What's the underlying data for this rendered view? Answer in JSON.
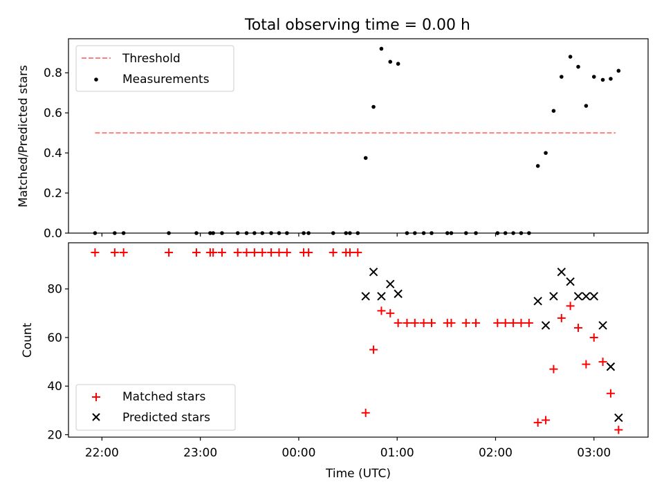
{
  "chart_data": [
    {
      "type": "scatter",
      "title": "Total observing time = 0.00 h",
      "xlabel": "",
      "ylabel": "Matched/Predicted stars",
      "ylim": [
        0,
        0.97
      ],
      "xlim_hours_utc": [
        21.66,
        27.55
      ],
      "yticks": [
        "0.0",
        "0.2",
        "0.4",
        "0.6",
        "0.8"
      ],
      "grid": false,
      "legend": {
        "placement": "upper-left",
        "entries": [
          "Threshold",
          "Measurements"
        ]
      },
      "threshold": {
        "name": "Threshold",
        "y": 0.5,
        "x_range": [
          21.93,
          27.22
        ],
        "color": "#ff7f7f"
      },
      "series": [
        {
          "name": "Measurements",
          "color": "#000000",
          "points": [
            [
              21.93,
              0
            ],
            [
              22.13,
              0
            ],
            [
              22.22,
              0
            ],
            [
              22.68,
              0
            ],
            [
              22.96,
              0
            ],
            [
              23.1,
              0
            ],
            [
              23.13,
              0
            ],
            [
              23.22,
              0
            ],
            [
              23.38,
              0
            ],
            [
              23.47,
              0
            ],
            [
              23.55,
              0
            ],
            [
              23.63,
              0
            ],
            [
              23.72,
              0
            ],
            [
              23.8,
              0
            ],
            [
              23.88,
              0
            ],
            [
              24.05,
              0
            ],
            [
              24.1,
              0
            ],
            [
              24.35,
              0
            ],
            [
              24.48,
              0
            ],
            [
              24.52,
              0
            ],
            [
              24.6,
              0
            ],
            [
              24.68,
              0.375
            ],
            [
              24.76,
              0.63
            ],
            [
              24.84,
              0.92
            ],
            [
              24.93,
              0.855
            ],
            [
              25.01,
              0.845
            ],
            [
              25.1,
              0
            ],
            [
              25.18,
              0
            ],
            [
              25.27,
              0
            ],
            [
              25.35,
              0
            ],
            [
              25.51,
              0
            ],
            [
              25.55,
              0
            ],
            [
              25.7,
              0
            ],
            [
              25.8,
              0
            ],
            [
              26.02,
              0
            ],
            [
              26.1,
              0
            ],
            [
              26.18,
              0
            ],
            [
              26.26,
              0
            ],
            [
              26.34,
              0
            ],
            [
              26.43,
              0.335
            ],
            [
              26.51,
              0.4
            ],
            [
              26.59,
              0.61
            ],
            [
              26.67,
              0.78
            ],
            [
              26.76,
              0.88
            ],
            [
              26.84,
              0.83
            ],
            [
              26.92,
              0.635
            ],
            [
              27.0,
              0.78
            ],
            [
              27.09,
              0.765
            ],
            [
              27.17,
              0.77
            ],
            [
              27.25,
              0.81
            ]
          ]
        }
      ]
    },
    {
      "type": "scatter",
      "title": "",
      "xlabel": "Time (UTC)",
      "ylabel": "Count",
      "ylim": [
        19,
        99
      ],
      "xlim_hours_utc": [
        21.66,
        27.55
      ],
      "yticks": [
        "20",
        "40",
        "60",
        "80"
      ],
      "xticks": [
        {
          "hour": 22,
          "label": "22:00"
        },
        {
          "hour": 23,
          "label": "23:00"
        },
        {
          "hour": 24,
          "label": "00:00"
        },
        {
          "hour": 25,
          "label": "01:00"
        },
        {
          "hour": 26,
          "label": "02:00"
        },
        {
          "hour": 27,
          "label": "03:00"
        }
      ],
      "grid": false,
      "legend": {
        "placement": "lower-left",
        "entries": [
          "Matched stars",
          "Predicted stars"
        ]
      },
      "series": [
        {
          "name": "Matched stars",
          "marker": "plus",
          "color": "#ff0000",
          "points": [
            [
              21.93,
              95
            ],
            [
              22.13,
              95
            ],
            [
              22.22,
              95
            ],
            [
              22.68,
              95
            ],
            [
              22.96,
              95
            ],
            [
              23.1,
              95
            ],
            [
              23.13,
              95
            ],
            [
              23.22,
              95
            ],
            [
              23.38,
              95
            ],
            [
              23.47,
              95
            ],
            [
              23.55,
              95
            ],
            [
              23.63,
              95
            ],
            [
              23.72,
              95
            ],
            [
              23.8,
              95
            ],
            [
              23.88,
              95
            ],
            [
              24.05,
              95
            ],
            [
              24.1,
              95
            ],
            [
              24.35,
              95
            ],
            [
              24.48,
              95
            ],
            [
              24.52,
              95
            ],
            [
              24.6,
              95
            ],
            [
              24.68,
              29
            ],
            [
              24.76,
              55
            ],
            [
              24.84,
              71
            ],
            [
              24.93,
              70
            ],
            [
              25.01,
              66
            ],
            [
              25.1,
              66
            ],
            [
              25.18,
              66
            ],
            [
              25.27,
              66
            ],
            [
              25.35,
              66
            ],
            [
              25.51,
              66
            ],
            [
              25.55,
              66
            ],
            [
              25.7,
              66
            ],
            [
              25.8,
              66
            ],
            [
              26.02,
              66
            ],
            [
              26.1,
              66
            ],
            [
              26.18,
              66
            ],
            [
              26.26,
              66
            ],
            [
              26.34,
              66
            ],
            [
              26.43,
              25
            ],
            [
              26.51,
              26
            ],
            [
              26.59,
              47
            ],
            [
              26.67,
              68
            ],
            [
              26.76,
              73
            ],
            [
              26.84,
              64
            ],
            [
              26.92,
              49
            ],
            [
              27.0,
              60
            ],
            [
              27.09,
              50
            ],
            [
              27.17,
              37
            ],
            [
              27.25,
              22
            ]
          ]
        },
        {
          "name": "Predicted stars",
          "marker": "x",
          "color": "#000000",
          "points": [
            [
              24.68,
              77
            ],
            [
              24.76,
              87
            ],
            [
              24.84,
              77
            ],
            [
              24.93,
              82
            ],
            [
              25.01,
              78
            ],
            [
              26.43,
              75
            ],
            [
              26.51,
              65
            ],
            [
              26.59,
              77
            ],
            [
              26.67,
              87
            ],
            [
              26.76,
              83
            ],
            [
              26.84,
              77
            ],
            [
              26.92,
              77
            ],
            [
              27.0,
              77
            ],
            [
              27.09,
              65
            ],
            [
              27.17,
              48
            ],
            [
              27.25,
              27
            ]
          ]
        }
      ]
    }
  ]
}
